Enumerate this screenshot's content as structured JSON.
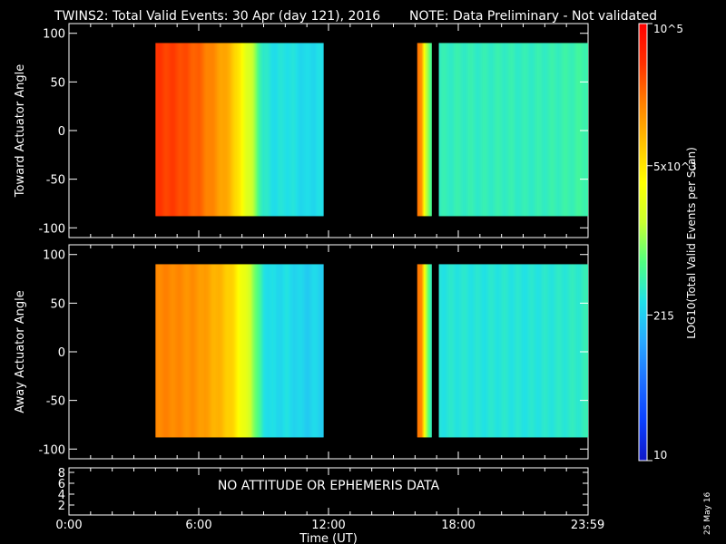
{
  "header": {
    "title": "TWINS2: Total Valid Events: 30 Apr (day 121), 2016",
    "note": "NOTE: Data Preliminary - Not validated",
    "note_color": "#ff2020"
  },
  "footer": {
    "date_stamp": "25 May 16"
  },
  "status_panel": {
    "message": "NO ATTITUDE OR EPHEMERIS DATA",
    "ytick_labels": [
      "8",
      "6",
      "4",
      "2"
    ]
  },
  "chart_data": [
    {
      "type": "heatmap",
      "panel": "toward",
      "ylabel": "Toward Actuator Angle",
      "ylim": [
        -110,
        110
      ],
      "yticks": [
        100,
        50,
        0,
        -50,
        -100
      ],
      "ytick_labels": [
        "100",
        "50",
        "0",
        "-50",
        "-100"
      ],
      "xlim_hours": [
        0,
        24
      ],
      "data_angle_range": [
        -88,
        90
      ],
      "blocks": [
        {
          "start_hour": 4.0,
          "end_hour": 11.75,
          "times_hours": [
            4.0,
            5.0,
            6.0,
            6.5,
            7.0,
            7.5,
            7.8,
            8.1,
            8.4,
            8.6,
            8.8,
            9.0,
            9.3,
            9.6,
            10.0,
            10.5,
            11.0,
            11.5,
            11.75
          ],
          "log_values": [
            4.6,
            4.55,
            4.4,
            4.25,
            4.1,
            3.95,
            3.7,
            3.45,
            3.25,
            3.0,
            2.75,
            2.55,
            2.5,
            2.45,
            2.5,
            2.45,
            2.4,
            2.45,
            2.4
          ]
        },
        {
          "start_hour": 16.1,
          "end_hour": 16.75,
          "times_hours": [
            16.1,
            16.3,
            16.5,
            16.75
          ],
          "log_values": [
            4.35,
            4.2,
            3.2,
            2.7
          ]
        },
        {
          "start_hour": 17.1,
          "end_hour": 23.98,
          "times_hours": [
            17.1,
            18.0,
            19.0,
            20.0,
            21.0,
            22.0,
            23.0,
            23.98
          ],
          "log_values": [
            2.6,
            2.62,
            2.6,
            2.62,
            2.6,
            2.62,
            2.65,
            2.7
          ]
        }
      ]
    },
    {
      "type": "heatmap",
      "panel": "away",
      "ylabel": "Away Actuator Angle",
      "ylim": [
        -110,
        110
      ],
      "yticks": [
        100,
        50,
        0,
        -50,
        -100
      ],
      "ytick_labels": [
        "100",
        "50",
        "0",
        "-50",
        "-100"
      ],
      "xlim_hours": [
        0,
        24
      ],
      "data_angle_range": [
        -88,
        90
      ],
      "blocks": [
        {
          "start_hour": 4.0,
          "end_hour": 11.75,
          "times_hours": [
            4.0,
            5.0,
            6.0,
            6.5,
            7.0,
            7.5,
            7.8,
            8.1,
            8.4,
            8.6,
            8.8,
            9.0,
            9.3,
            9.6,
            10.0,
            10.5,
            11.0,
            11.5,
            11.75
          ],
          "log_values": [
            4.25,
            4.22,
            4.15,
            4.05,
            3.95,
            3.8,
            3.6,
            3.4,
            3.2,
            2.95,
            2.7,
            2.5,
            2.45,
            2.4,
            2.45,
            2.4,
            2.35,
            2.4,
            2.35
          ]
        },
        {
          "start_hour": 16.1,
          "end_hour": 16.75,
          "times_hours": [
            16.1,
            16.3,
            16.5,
            16.75
          ],
          "log_values": [
            4.35,
            4.2,
            3.2,
            2.6
          ]
        },
        {
          "start_hour": 17.1,
          "end_hour": 23.98,
          "times_hours": [
            17.1,
            18.0,
            19.0,
            20.0,
            21.0,
            22.0,
            23.0,
            23.98
          ],
          "log_values": [
            2.5,
            2.52,
            2.5,
            2.52,
            2.5,
            2.52,
            2.55,
            2.6
          ]
        }
      ]
    }
  ],
  "xaxis": {
    "label": "Time (UT)",
    "ticks_hours": [
      0,
      6,
      12,
      18,
      23.983
    ],
    "tick_labels": [
      "0:00",
      "6:00",
      "12:00",
      "18:00",
      "23:59"
    ]
  },
  "colorbar": {
    "label": "LOG10(Total Valid Events per Scan)",
    "log_range": [
      1,
      5
    ],
    "ticks_log": [
      5,
      3.699,
      2.332,
      1
    ],
    "tick_labels": [
      "10^5",
      "5x10^3",
      "215",
      "10"
    ],
    "colors": [
      "#1018c8",
      "#0a40ff",
      "#1e70ff",
      "#28a8ff",
      "#20e0e8",
      "#50ff80",
      "#c8ff30",
      "#ffff00",
      "#ffc000",
      "#ff8000",
      "#ff3000",
      "#ff0000"
    ]
  }
}
